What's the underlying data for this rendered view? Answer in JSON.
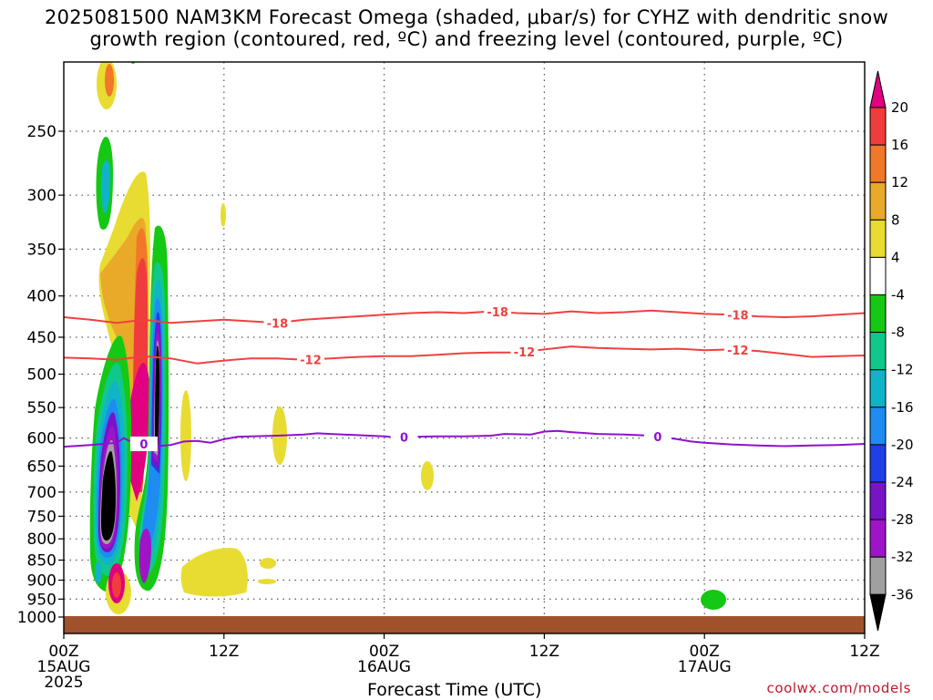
{
  "title_line1": "2025081500 NAM3KM Forecast Omega (shaded, μbar/s) for CYHZ with dendritic snow",
  "title_line2": "growth region (contoured, red, ºC) and freezing level (contoured, purple, ºC)",
  "credit": "coolwx.com/models",
  "chart_data": {
    "type": "heatmap",
    "title": "2025081500 NAM3KM Forecast Omega (shaded, μbar/s) for CYHZ with dendritic snow growth region (contoured, red, ºC) and freezing level (contoured, purple, ºC)",
    "xlabel": "Forecast Time (UTC)",
    "ylabel": "",
    "x_range_hours": [
      0,
      60
    ],
    "y_range_hpa": [
      1050,
      200
    ],
    "y_scale": "log-pressure (inverted)",
    "grid": "dotted",
    "x_ticks": [
      {
        "hour": 0,
        "label": "00Z",
        "sub": "15AUG",
        "sub2": "2025"
      },
      {
        "hour": 12,
        "label": "12Z",
        "sub": "",
        "sub2": ""
      },
      {
        "hour": 24,
        "label": "00Z",
        "sub": "16AUG",
        "sub2": ""
      },
      {
        "hour": 36,
        "label": "12Z",
        "sub": "",
        "sub2": ""
      },
      {
        "hour": 48,
        "label": "00Z",
        "sub": "17AUG",
        "sub2": ""
      },
      {
        "hour": 60,
        "label": "12Z",
        "sub": "",
        "sub2": ""
      }
    ],
    "y_ticks": [
      250,
      300,
      350,
      400,
      450,
      500,
      550,
      600,
      650,
      700,
      750,
      800,
      850,
      900,
      950,
      1000
    ],
    "colorbar": {
      "labels": [
        "20",
        "16",
        "12",
        "8",
        "4",
        "-4",
        "-8",
        "-12",
        "-16",
        "-20",
        "-24",
        "-28",
        "-32",
        "-36"
      ],
      "levels": [
        20,
        16,
        12,
        8,
        4,
        -4,
        -8,
        -12,
        -16,
        -20,
        -24,
        -28,
        -32,
        -36
      ],
      "colors": [
        "#e00080",
        "#f03c3c",
        "#f07828",
        "#e8aa28",
        "#e8dc32",
        "#ffffff",
        "#14c814",
        "#10c88c",
        "#10b4c8",
        "#1e8cf0",
        "#1e40e6",
        "#7814c8",
        "#a014c8",
        "#a0a0a0",
        "#000000"
      ]
    },
    "contours": [
      {
        "label": "-18",
        "color": "#f04040",
        "points": [
          [
            0,
            425
          ],
          [
            2,
            428
          ],
          [
            4,
            432
          ],
          [
            6,
            428
          ],
          [
            8,
            432
          ],
          [
            10,
            430
          ],
          [
            12,
            428
          ],
          [
            14,
            430
          ],
          [
            16,
            432
          ],
          [
            18,
            428
          ],
          [
            20,
            426
          ],
          [
            22,
            424
          ],
          [
            24,
            422
          ],
          [
            26,
            420
          ],
          [
            28,
            419
          ],
          [
            30,
            420
          ],
          [
            32,
            418
          ],
          [
            34,
            420
          ],
          [
            36,
            421
          ],
          [
            38,
            418
          ],
          [
            40,
            420
          ],
          [
            42,
            419
          ],
          [
            44,
            417
          ],
          [
            46,
            419
          ],
          [
            48,
            421
          ],
          [
            50,
            422
          ],
          [
            52,
            424
          ],
          [
            54,
            425
          ],
          [
            56,
            424
          ],
          [
            58,
            422
          ],
          [
            60,
            420
          ]
        ],
        "label_hours": [
          16,
          32.5,
          50.5
        ]
      },
      {
        "label": "-12",
        "color": "#f04040",
        "points": [
          [
            0,
            477
          ],
          [
            2,
            478
          ],
          [
            4,
            480
          ],
          [
            6,
            475
          ],
          [
            8,
            478
          ],
          [
            10,
            485
          ],
          [
            12,
            481
          ],
          [
            14,
            478
          ],
          [
            16,
            478
          ],
          [
            18,
            480
          ],
          [
            20,
            478
          ],
          [
            22,
            476
          ],
          [
            24,
            475
          ],
          [
            26,
            475
          ],
          [
            28,
            473
          ],
          [
            30,
            471
          ],
          [
            32,
            470
          ],
          [
            34,
            470
          ],
          [
            36,
            466
          ],
          [
            38,
            462
          ],
          [
            40,
            464
          ],
          [
            42,
            465
          ],
          [
            44,
            466
          ],
          [
            46,
            465
          ],
          [
            48,
            467
          ],
          [
            50,
            466
          ],
          [
            52,
            468
          ],
          [
            54,
            472
          ],
          [
            56,
            476
          ],
          [
            58,
            475
          ],
          [
            60,
            474
          ]
        ],
        "label_hours": [
          18.5,
          34.5,
          50.5
        ]
      },
      {
        "label": "0",
        "color": "#9010d0",
        "points": [
          [
            0,
            615
          ],
          [
            2,
            612
          ],
          [
            4,
            608
          ],
          [
            4.5,
            600
          ],
          [
            5,
            606
          ],
          [
            6,
            610
          ],
          [
            7,
            614
          ],
          [
            8,
            612
          ],
          [
            9,
            606
          ],
          [
            10,
            605
          ],
          [
            11,
            608
          ],
          [
            12,
            602
          ],
          [
            13,
            598
          ],
          [
            14,
            597
          ],
          [
            16,
            596
          ],
          [
            18,
            594
          ],
          [
            19,
            592
          ],
          [
            20,
            593
          ],
          [
            22,
            595
          ],
          [
            24,
            597
          ],
          [
            25,
            599
          ],
          [
            26,
            598
          ],
          [
            28,
            597
          ],
          [
            30,
            597
          ],
          [
            32,
            596
          ],
          [
            33,
            593
          ],
          [
            35,
            594
          ],
          [
            36,
            589
          ],
          [
            37,
            588
          ],
          [
            38,
            590
          ],
          [
            40,
            593
          ],
          [
            42,
            594
          ],
          [
            44,
            596
          ],
          [
            46,
            602
          ],
          [
            47,
            606
          ],
          [
            48,
            608
          ],
          [
            50,
            611
          ],
          [
            52,
            613
          ],
          [
            54,
            614
          ],
          [
            56,
            613
          ],
          [
            58,
            612
          ],
          [
            60,
            610
          ]
        ],
        "label_hours": [
          6,
          25.5,
          44.5
        ]
      }
    ]
  }
}
